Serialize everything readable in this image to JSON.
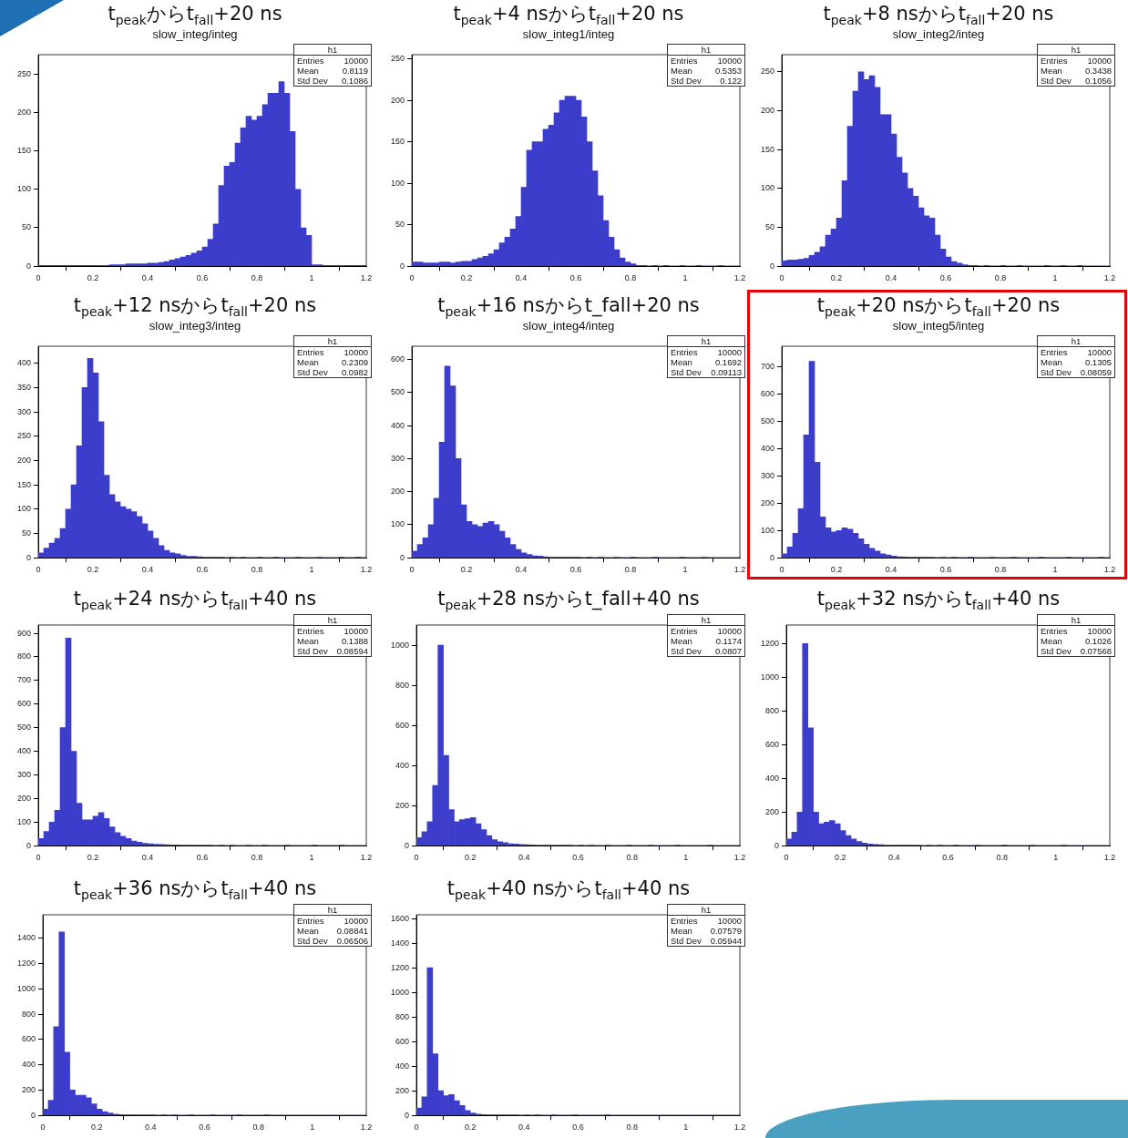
{
  "chart_data": [
    {
      "type": "histogram",
      "title": "t$_{peak}$からt$_{fall}$+20 ns",
      "subtitle": "slow_integ/integ",
      "color": "#3d3dcc",
      "xlim": [
        0,
        1.2
      ],
      "xticks": [
        0,
        0.2,
        0.4,
        0.6,
        0.8,
        1,
        1.2
      ],
      "ylim": [
        0,
        275
      ],
      "yticks": [
        0,
        50,
        100,
        150,
        200,
        250
      ],
      "annotations": [
        "h1",
        "Entries",
        "10000",
        "Mean",
        "0.8119",
        "Std Dev",
        "0.1086"
      ],
      "bins": [
        0,
        0.02,
        0.04,
        0.06,
        0.08,
        0.1,
        0.12,
        0.14,
        0.16,
        0.18,
        0.2,
        0.22,
        0.24,
        0.26,
        0.28,
        0.3,
        0.32,
        0.34,
        0.36,
        0.38,
        0.4,
        0.42,
        0.44,
        0.46,
        0.48,
        0.5,
        0.52,
        0.54,
        0.56,
        0.58,
        0.6,
        0.62,
        0.64,
        0.66,
        0.68,
        0.7,
        0.72,
        0.74,
        0.76,
        0.78,
        0.8,
        0.82,
        0.84,
        0.86,
        0.88,
        0.9,
        0.92,
        0.94,
        0.96,
        0.98,
        1,
        1.02,
        1.04,
        1.06,
        1.08,
        1.1,
        1.12,
        1.14,
        1.16,
        1.18,
        1.2
      ],
      "values": [
        1,
        1,
        1,
        1,
        1,
        1,
        1,
        1,
        1,
        1,
        1,
        1,
        1,
        2,
        2,
        2,
        3,
        3,
        3,
        3,
        4,
        4,
        5,
        6,
        8,
        10,
        12,
        14,
        17,
        20,
        25,
        35,
        55,
        105,
        130,
        135,
        160,
        180,
        195,
        190,
        195,
        210,
        225,
        225,
        240,
        225,
        175,
        100,
        50,
        40,
        2,
        2,
        1,
        1,
        1,
        1,
        1,
        1,
        1,
        1
      ]
    },
    {
      "type": "histogram",
      "title": "t$_{peak}$+4 nsからt$_{fall}$+20 ns",
      "subtitle": "slow_integ1/integ",
      "color": "#3d3dcc",
      "xlim": [
        0,
        1.2
      ],
      "xticks": [
        0,
        0.2,
        0.4,
        0.6,
        0.8,
        1,
        1.2
      ],
      "ylim": [
        0,
        255
      ],
      "yticks": [
        0,
        50,
        100,
        150,
        200,
        250
      ],
      "annotations": [
        "h1",
        "Entries",
        "10000",
        "Mean",
        "0.5353",
        "Std Dev",
        "0.122"
      ],
      "bins": [
        0,
        0.02,
        0.04,
        0.06,
        0.08,
        0.1,
        0.12,
        0.14,
        0.16,
        0.18,
        0.2,
        0.22,
        0.24,
        0.26,
        0.28,
        0.3,
        0.32,
        0.34,
        0.36,
        0.38,
        0.4,
        0.42,
        0.44,
        0.46,
        0.48,
        0.5,
        0.52,
        0.54,
        0.56,
        0.58,
        0.6,
        0.62,
        0.64,
        0.66,
        0.68,
        0.7,
        0.72,
        0.74,
        0.76,
        0.78,
        0.8,
        0.82,
        0.84,
        0.86,
        0.88,
        0.9,
        0.92,
        0.94,
        0.96,
        0.98,
        1,
        1.02,
        1.04,
        1.06,
        1.08,
        1.1,
        1.12,
        1.14,
        1.16,
        1.18,
        1.2
      ],
      "values": [
        5,
        5,
        4,
        4,
        4,
        5,
        5,
        4,
        5,
        6,
        6,
        8,
        10,
        12,
        15,
        20,
        28,
        35,
        45,
        60,
        95,
        140,
        150,
        150,
        165,
        170,
        185,
        200,
        205,
        205,
        200,
        180,
        150,
        115,
        85,
        55,
        35,
        20,
        10,
        5,
        3,
        1,
        1,
        0,
        1,
        0,
        1,
        0,
        0,
        1,
        0,
        0,
        1,
        0,
        0,
        0,
        1,
        0,
        0,
        0
      ]
    },
    {
      "type": "histogram",
      "title": "t$_{peak}$+8 nsからt$_{fall}$+20 ns",
      "subtitle": "slow_integ2/integ",
      "color": "#3d3dcc",
      "xlim": [
        0,
        1.2
      ],
      "xticks": [
        0,
        0.2,
        0.4,
        0.6,
        0.8,
        1,
        1.2
      ],
      "ylim": [
        0,
        272
      ],
      "yticks": [
        0,
        50,
        100,
        150,
        200,
        250
      ],
      "annotations": [
        "h1",
        "Entries",
        "10000",
        "Mean",
        "0.3438",
        "Std Dev",
        "0.1056"
      ],
      "bins": [
        0,
        0.02,
        0.04,
        0.06,
        0.08,
        0.1,
        0.12,
        0.14,
        0.16,
        0.18,
        0.2,
        0.22,
        0.24,
        0.26,
        0.28,
        0.3,
        0.32,
        0.34,
        0.36,
        0.38,
        0.4,
        0.42,
        0.44,
        0.46,
        0.48,
        0.5,
        0.52,
        0.54,
        0.56,
        0.58,
        0.6,
        0.62,
        0.64,
        0.66,
        0.68,
        0.7,
        0.72,
        0.74,
        0.76,
        0.78,
        0.8,
        0.82,
        0.84,
        0.86,
        0.88,
        0.9,
        0.92,
        0.94,
        0.96,
        0.98,
        1,
        1.02,
        1.04,
        1.06,
        1.08,
        1.1,
        1.12,
        1.14,
        1.16,
        1.18,
        1.2
      ],
      "values": [
        7,
        8,
        8,
        9,
        10,
        14,
        18,
        25,
        40,
        48,
        62,
        110,
        180,
        225,
        250,
        240,
        245,
        230,
        195,
        195,
        170,
        140,
        120,
        100,
        90,
        75,
        65,
        62,
        40,
        22,
        12,
        6,
        4,
        2,
        1,
        1,
        0,
        1,
        0,
        0,
        1,
        0,
        0,
        1,
        0,
        0,
        0,
        0,
        1,
        0,
        0,
        1,
        0,
        0,
        1,
        0,
        0,
        0,
        0,
        0
      ]
    },
    {
      "type": "histogram",
      "title": "t$_{peak}$+12 nsからt$_{fall}$+20 ns",
      "subtitle": "slow_integ3/integ",
      "color": "#3d3dcc",
      "xlim": [
        0,
        1.2
      ],
      "xticks": [
        0,
        0.2,
        0.4,
        0.6,
        0.8,
        1,
        1.2
      ],
      "ylim": [
        0,
        435
      ],
      "yticks": [
        0,
        50,
        100,
        150,
        200,
        250,
        300,
        350,
        400
      ],
      "annotations": [
        "h1",
        "Entries",
        "10000",
        "Mean",
        "0.2309",
        "Std Dev",
        "0.0982"
      ],
      "bins": [
        0,
        0.02,
        0.04,
        0.06,
        0.08,
        0.1,
        0.12,
        0.14,
        0.16,
        0.18,
        0.2,
        0.22,
        0.24,
        0.26,
        0.28,
        0.3,
        0.32,
        0.34,
        0.36,
        0.38,
        0.4,
        0.42,
        0.44,
        0.46,
        0.48,
        0.5,
        0.52,
        0.54,
        0.56,
        0.58,
        0.6,
        0.62,
        0.64,
        0.66,
        0.68,
        0.7,
        0.72,
        0.74,
        0.76,
        0.78,
        0.8,
        0.82,
        0.84,
        0.86,
        0.88,
        0.9,
        0.92,
        0.94,
        0.96,
        0.98,
        1,
        1.02,
        1.04,
        1.06,
        1.08,
        1.1,
        1.12,
        1.14,
        1.16,
        1.18,
        1.2
      ],
      "values": [
        10,
        20,
        30,
        40,
        60,
        100,
        150,
        230,
        350,
        410,
        380,
        280,
        170,
        130,
        115,
        105,
        100,
        95,
        85,
        70,
        55,
        40,
        25,
        15,
        10,
        8,
        5,
        3,
        3,
        2,
        1,
        1,
        1,
        1,
        0,
        1,
        0,
        1,
        0,
        0,
        1,
        0,
        0,
        1,
        0,
        0,
        0,
        1,
        0,
        0,
        0,
        1,
        0,
        0,
        0,
        1,
        0,
        0,
        1,
        0
      ]
    },
    {
      "type": "histogram",
      "title": "t$_{peak}$+16 nsからt_fall+20 ns",
      "subtitle": "slow_integ4/integ",
      "color": "#3d3dcc",
      "xlim": [
        0,
        1.2
      ],
      "xticks": [
        0,
        0.2,
        0.4,
        0.6,
        0.8,
        1,
        1.2
      ],
      "ylim": [
        0,
        640
      ],
      "yticks": [
        0,
        100,
        200,
        300,
        400,
        500,
        600
      ],
      "annotations": [
        "h1",
        "Entries",
        "10000",
        "Mean",
        "0.1692",
        "Std Dev",
        "0.09113"
      ],
      "bins": [
        0,
        0.02,
        0.04,
        0.06,
        0.08,
        0.1,
        0.12,
        0.14,
        0.16,
        0.18,
        0.2,
        0.22,
        0.24,
        0.26,
        0.28,
        0.3,
        0.32,
        0.34,
        0.36,
        0.38,
        0.4,
        0.42,
        0.44,
        0.46,
        0.48,
        0.5,
        0.52,
        0.54,
        0.56,
        0.58,
        0.6,
        0.62,
        0.64,
        0.66,
        0.68,
        0.7,
        0.72,
        0.74,
        0.76,
        0.78,
        0.8,
        0.82,
        0.84,
        0.86,
        0.88,
        0.9,
        0.92,
        0.94,
        0.96,
        0.98,
        1,
        1.02,
        1.04,
        1.06,
        1.08,
        1.1,
        1.12,
        1.14,
        1.16,
        1.18,
        1.2
      ],
      "values": [
        20,
        40,
        60,
        100,
        180,
        350,
        580,
        520,
        300,
        160,
        110,
        100,
        95,
        105,
        110,
        100,
        80,
        60,
        40,
        25,
        15,
        10,
        6,
        5,
        3,
        2,
        1,
        1,
        1,
        1,
        1,
        0,
        1,
        0,
        1,
        0,
        0,
        1,
        0,
        0,
        1,
        0,
        0,
        0,
        1,
        0,
        0,
        0,
        0,
        1,
        0,
        0,
        0,
        1,
        0,
        0,
        0,
        0,
        0,
        0
      ]
    },
    {
      "type": "histogram",
      "title": "t$_{peak}$+20 nsからt$_{fall}$+20 ns",
      "subtitle": "slow_integ5/integ",
      "color": "#3d3dcc",
      "xlim": [
        0,
        1.2
      ],
      "xticks": [
        0,
        0.2,
        0.4,
        0.6,
        0.8,
        1,
        1.2
      ],
      "ylim": [
        0,
        775
      ],
      "yticks": [
        0,
        100,
        200,
        300,
        400,
        500,
        600,
        700
      ],
      "annotations": [
        "h1",
        "Entries",
        "10000",
        "Mean",
        "0.1305",
        "Std Dev",
        "0.08059"
      ],
      "bins": [
        0,
        0.02,
        0.04,
        0.06,
        0.08,
        0.1,
        0.12,
        0.14,
        0.16,
        0.18,
        0.2,
        0.22,
        0.24,
        0.26,
        0.28,
        0.3,
        0.32,
        0.34,
        0.36,
        0.38,
        0.4,
        0.42,
        0.44,
        0.46,
        0.48,
        0.5,
        0.52,
        0.54,
        0.56,
        0.58,
        0.6,
        0.62,
        0.64,
        0.66,
        0.68,
        0.7,
        0.72,
        0.74,
        0.76,
        0.78,
        0.8,
        0.82,
        0.84,
        0.86,
        0.88,
        0.9,
        0.92,
        0.94,
        0.96,
        0.98,
        1,
        1.02,
        1.04,
        1.06,
        1.08,
        1.1,
        1.12,
        1.14,
        1.16,
        1.18,
        1.2
      ],
      "values": [
        15,
        40,
        90,
        180,
        450,
        720,
        350,
        150,
        110,
        95,
        100,
        110,
        105,
        90,
        70,
        50,
        35,
        25,
        15,
        10,
        6,
        4,
        3,
        2,
        1,
        1,
        1,
        1,
        0,
        1,
        0,
        1,
        0,
        0,
        1,
        0,
        0,
        0,
        1,
        0,
        0,
        0,
        1,
        0,
        0,
        0,
        0,
        1,
        0,
        0,
        0,
        0,
        1,
        0,
        0,
        0,
        0,
        0,
        1,
        0
      ]
    },
    {
      "type": "histogram",
      "title": "t$_{peak}$+24 nsからt$_{fall}$+40 ns",
      "color": "#3d3dcc",
      "xlim": [
        0,
        1.2
      ],
      "xticks": [
        0,
        0.2,
        0.4,
        0.6,
        0.8,
        1,
        1.2
      ],
      "ylim": [
        0,
        935
      ],
      "yticks": [
        0,
        100,
        200,
        300,
        400,
        500,
        600,
        700,
        800,
        900
      ],
      "annotations": [
        "h1",
        "Entries",
        "10000",
        "Mean",
        "0.1388",
        "Std Dev",
        "0.08594"
      ],
      "bins": [
        0,
        0.02,
        0.04,
        0.06,
        0.08,
        0.1,
        0.12,
        0.14,
        0.16,
        0.18,
        0.2,
        0.22,
        0.24,
        0.26,
        0.28,
        0.3,
        0.32,
        0.34,
        0.36,
        0.38,
        0.4,
        0.42,
        0.44,
        0.46,
        0.48,
        0.5,
        0.52,
        0.54,
        0.56,
        0.58,
        0.6,
        0.62,
        0.64,
        0.66,
        0.68,
        0.7,
        0.72,
        0.74,
        0.76,
        0.78,
        0.8,
        0.82,
        0.84,
        0.86,
        0.88,
        0.9,
        0.92,
        0.94,
        0.96,
        0.98,
        1,
        1.02,
        1.04,
        1.06,
        1.08,
        1.1,
        1.12,
        1.14,
        1.16,
        1.18,
        1.2
      ],
      "values": [
        30,
        60,
        100,
        150,
        500,
        880,
        400,
        180,
        110,
        110,
        125,
        140,
        115,
        80,
        55,
        40,
        30,
        20,
        15,
        10,
        8,
        6,
        5,
        4,
        3,
        3,
        2,
        2,
        1,
        1,
        1,
        1,
        0,
        1,
        0,
        1,
        0,
        0,
        1,
        0,
        0,
        1,
        0,
        0,
        0,
        1,
        0,
        0,
        0,
        0,
        1,
        0,
        0,
        0,
        0,
        1,
        0,
        0,
        0,
        0
      ]
    },
    {
      "type": "histogram",
      "title": "t$_{peak}$+28 nsからt_fall+40 ns",
      "color": "#3d3dcc",
      "xlim": [
        0,
        1.2
      ],
      "xticks": [
        0,
        0.2,
        0.4,
        0.6,
        0.8,
        1,
        1.2
      ],
      "ylim": [
        0,
        1100
      ],
      "yticks": [
        0,
        200,
        400,
        600,
        800,
        1000
      ],
      "annotations": [
        "h1",
        "Entries",
        "10000",
        "Mean",
        "0.1174",
        "Std Dev",
        "0.0807"
      ],
      "bins": [
        0,
        0.02,
        0.04,
        0.06,
        0.08,
        0.1,
        0.12,
        0.14,
        0.16,
        0.18,
        0.2,
        0.22,
        0.24,
        0.26,
        0.28,
        0.3,
        0.32,
        0.34,
        0.36,
        0.38,
        0.4,
        0.42,
        0.44,
        0.46,
        0.48,
        0.5,
        0.52,
        0.54,
        0.56,
        0.58,
        0.6,
        0.62,
        0.64,
        0.66,
        0.68,
        0.7,
        0.72,
        0.74,
        0.76,
        0.78,
        0.8,
        0.82,
        0.84,
        0.86,
        0.88,
        0.9,
        0.92,
        0.94,
        0.96,
        0.98,
        1,
        1.02,
        1.04,
        1.06,
        1.08,
        1.1,
        1.12,
        1.14,
        1.16,
        1.18,
        1.2
      ],
      "values": [
        40,
        70,
        120,
        300,
        1000,
        450,
        180,
        120,
        130,
        135,
        140,
        110,
        80,
        50,
        30,
        20,
        15,
        10,
        8,
        6,
        5,
        4,
        3,
        2,
        2,
        1,
        1,
        1,
        1,
        0,
        1,
        0,
        1,
        0,
        0,
        1,
        0,
        0,
        0,
        1,
        0,
        0,
        0,
        1,
        0,
        0,
        0,
        0,
        1,
        0,
        0,
        0,
        0,
        0,
        1,
        0,
        0,
        0,
        0,
        0
      ]
    },
    {
      "type": "histogram",
      "title": "t$_{peak}$+32 nsからt$_{fall}$+40 ns",
      "color": "#3d3dcc",
      "xlim": [
        0,
        1.2
      ],
      "xticks": [
        0,
        0.2,
        0.4,
        0.6,
        0.8,
        1,
        1.2
      ],
      "ylim": [
        0,
        1310
      ],
      "yticks": [
        0,
        200,
        400,
        600,
        800,
        1000,
        1200
      ],
      "annotations": [
        "h1",
        "Entries",
        "10000",
        "Mean",
        "0.1026",
        "Std Dev",
        "0.07568"
      ],
      "bins": [
        0,
        0.02,
        0.04,
        0.06,
        0.08,
        0.1,
        0.12,
        0.14,
        0.16,
        0.18,
        0.2,
        0.22,
        0.24,
        0.26,
        0.28,
        0.3,
        0.32,
        0.34,
        0.36,
        0.38,
        0.4,
        0.42,
        0.44,
        0.46,
        0.48,
        0.5,
        0.52,
        0.54,
        0.56,
        0.58,
        0.6,
        0.62,
        0.64,
        0.66,
        0.68,
        0.7,
        0.72,
        0.74,
        0.76,
        0.78,
        0.8,
        0.82,
        0.84,
        0.86,
        0.88,
        0.9,
        0.92,
        0.94,
        0.96,
        0.98,
        1,
        1.02,
        1.04,
        1.06,
        1.08,
        1.1,
        1.12,
        1.14,
        1.16,
        1.18,
        1.2
      ],
      "values": [
        40,
        80,
        200,
        1200,
        700,
        200,
        130,
        140,
        150,
        130,
        90,
        60,
        40,
        25,
        15,
        10,
        8,
        6,
        4,
        3,
        2,
        1,
        1,
        1,
        1,
        0,
        1,
        0,
        1,
        0,
        0,
        1,
        0,
        0,
        0,
        1,
        0,
        0,
        0,
        0,
        1,
        0,
        0,
        0,
        0,
        1,
        0,
        0,
        0,
        0,
        0,
        1,
        0,
        0,
        0,
        0,
        0,
        0,
        0,
        0
      ]
    },
    {
      "type": "histogram",
      "title": "t$_{peak}$+36 nsからt$_{fall}$+40 ns",
      "color": "#3d3dcc",
      "xlim": [
        0,
        1.2
      ],
      "xticks": [
        0,
        0.2,
        0.4,
        0.6,
        0.8,
        1,
        1.2
      ],
      "ylim": [
        0,
        1585
      ],
      "yticks": [
        0,
        200,
        400,
        600,
        800,
        1000,
        1200,
        1400
      ],
      "annotations": [
        "h1",
        "Entries",
        "10000",
        "Mean",
        "0.08841",
        "Std Dev",
        "0.06506"
      ],
      "bins": [
        0,
        0.02,
        0.04,
        0.06,
        0.08,
        0.1,
        0.12,
        0.14,
        0.16,
        0.18,
        0.2,
        0.22,
        0.24,
        0.26,
        0.28,
        0.3,
        0.32,
        0.34,
        0.36,
        0.38,
        0.4,
        0.42,
        0.44,
        0.46,
        0.48,
        0.5,
        0.52,
        0.54,
        0.56,
        0.58,
        0.6,
        0.62,
        0.64,
        0.66,
        0.68,
        0.7,
        0.72,
        0.74,
        0.76,
        0.78,
        0.8,
        0.82,
        0.84,
        0.86,
        0.88,
        0.9,
        0.92,
        0.94,
        0.96,
        0.98,
        1,
        1.02,
        1.04,
        1.06,
        1.08,
        1.1,
        1.12,
        1.14,
        1.16,
        1.18,
        1.2
      ],
      "values": [
        50,
        120,
        700,
        1450,
        500,
        200,
        160,
        160,
        140,
        90,
        50,
        30,
        18,
        10,
        6,
        4,
        3,
        2,
        1,
        1,
        1,
        0,
        1,
        0,
        1,
        0,
        0,
        1,
        0,
        0,
        0,
        1,
        0,
        0,
        0,
        0,
        1,
        0,
        0,
        0,
        0,
        1,
        0,
        0,
        0,
        0,
        0,
        0,
        0,
        0,
        0,
        0,
        0,
        0,
        0,
        0,
        0,
        0,
        0,
        0
      ]
    },
    {
      "type": "histogram",
      "title": "t$_{peak}$+40 nsからt$_{fall}$+40 ns",
      "color": "#3d3dcc",
      "xlim": [
        0,
        1.2
      ],
      "xticks": [
        0,
        0.2,
        0.4,
        0.6,
        0.8,
        1,
        1.2
      ],
      "ylim": [
        0,
        1630
      ],
      "yticks": [
        0,
        200,
        400,
        600,
        800,
        1000,
        1200,
        1400,
        1600
      ],
      "annotations": [
        "h1",
        "Entries",
        "10000",
        "Mean",
        "0.07579",
        "Std Dev",
        "0.05944"
      ],
      "bins": [
        0,
        0.02,
        0.04,
        0.06,
        0.08,
        0.1,
        0.12,
        0.14,
        0.16,
        0.18,
        0.2,
        0.22,
        0.24,
        0.26,
        0.28,
        0.3,
        0.32,
        0.34,
        0.36,
        0.38,
        0.4,
        0.42,
        0.44,
        0.46,
        0.48,
        0.5,
        0.52,
        0.54,
        0.56,
        0.58,
        0.6,
        0.62,
        0.64,
        0.66,
        0.68,
        0.7,
        0.72,
        0.74,
        0.76,
        0.78,
        0.8,
        0.82,
        0.84,
        0.86,
        0.88,
        0.9,
        0.92,
        0.94,
        0.96,
        0.98,
        1,
        1.02,
        1.04,
        1.06,
        1.08,
        1.1,
        1.12,
        1.14,
        1.16,
        1.18,
        1.2
      ],
      "values": [
        60,
        150,
        1200,
        500,
        200,
        160,
        170,
        120,
        80,
        40,
        20,
        10,
        6,
        4,
        3,
        2,
        1,
        1,
        1,
        0,
        1,
        0,
        1,
        0,
        0,
        1,
        0,
        0,
        0,
        1,
        0,
        0,
        0,
        0,
        0,
        1,
        0,
        0,
        0,
        0,
        0,
        0,
        0,
        0,
        0,
        0,
        0,
        0,
        0,
        0,
        0,
        0,
        0,
        0,
        0,
        0,
        0,
        0,
        0,
        0
      ]
    }
  ]
}
